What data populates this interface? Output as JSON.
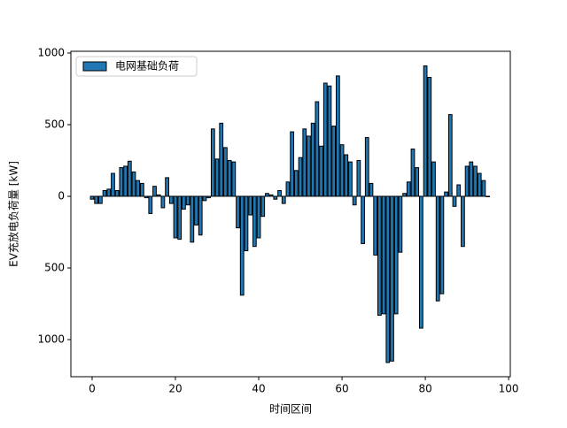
{
  "chart_data": {
    "type": "bar",
    "xlabel": "时间区间",
    "ylabel": "EV充放电负荷量 [kW]",
    "x": [
      0,
      1,
      2,
      3,
      4,
      5,
      6,
      7,
      8,
      9,
      10,
      11,
      12,
      13,
      14,
      15,
      16,
      17,
      18,
      19,
      20,
      21,
      22,
      23,
      24,
      25,
      26,
      27,
      28,
      29,
      30,
      31,
      32,
      33,
      34,
      35,
      36,
      37,
      38,
      39,
      40,
      41,
      42,
      43,
      44,
      45,
      46,
      47,
      48,
      49,
      50,
      51,
      52,
      53,
      54,
      55,
      56,
      57,
      58,
      59,
      60,
      61,
      62,
      63,
      64,
      65,
      66,
      67,
      68,
      69,
      70,
      71,
      72,
      73,
      74,
      75,
      76,
      77,
      78,
      79,
      80,
      81,
      82,
      83,
      84,
      85,
      86,
      87,
      88,
      89,
      90,
      91,
      92,
      93,
      94,
      95
    ],
    "series": [
      {
        "name": "电网基础负荷",
        "color": "#1f77b4",
        "edgecolor": "#000000",
        "values": [
          -20,
          -50,
          -50,
          40,
          50,
          160,
          40,
          200,
          210,
          245,
          170,
          110,
          90,
          -10,
          -120,
          70,
          10,
          -80,
          130,
          -50,
          -290,
          -300,
          -90,
          -60,
          -320,
          -200,
          -270,
          -30,
          -10,
          470,
          260,
          510,
          340,
          250,
          240,
          -220,
          -690,
          -380,
          -130,
          -350,
          -290,
          -140,
          20,
          10,
          -20,
          40,
          -50,
          100,
          450,
          180,
          270,
          470,
          420,
          510,
          660,
          350,
          790,
          770,
          490,
          840,
          360,
          290,
          240,
          -60,
          250,
          -330,
          410,
          90,
          -410,
          -830,
          -820,
          -1160,
          -1150,
          -820,
          -390,
          20,
          100,
          330,
          200,
          -920,
          910,
          830,
          240,
          -730,
          -680,
          30,
          570,
          -70,
          80,
          -350,
          210,
          240,
          210,
          160,
          110,
          0
        ]
      }
    ],
    "xlim": [
      -5.1,
      100.4
    ],
    "ylim": [
      -1259,
      1012
    ],
    "xticks": [
      0,
      20,
      40,
      60,
      80,
      100
    ],
    "yticks": [
      {
        "value": -1000,
        "label": "1000"
      },
      {
        "value": -500,
        "label": "500"
      },
      0,
      500,
      1000
    ],
    "legend": "upper left"
  }
}
